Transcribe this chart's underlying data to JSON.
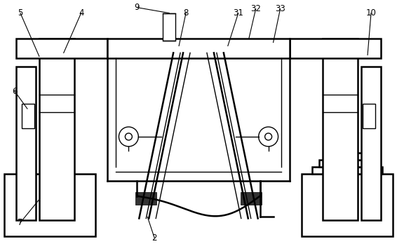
{
  "bg_color": "#ffffff",
  "line_color": "#000000",
  "lw": 1.0,
  "lw2": 1.8,
  "fig_width": 5.66,
  "fig_height": 3.58
}
